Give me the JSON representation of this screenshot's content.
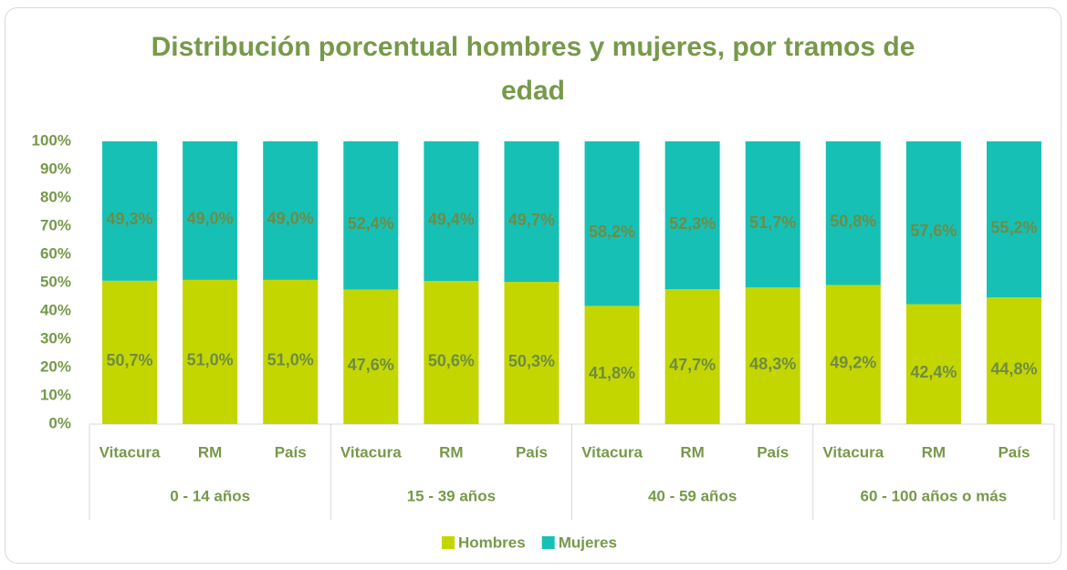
{
  "chart_data": {
    "type": "stacked_bar",
    "title": "Distribución porcentual hombres y mujeres, por tramos de edad",
    "groups": [
      {
        "name": "0 - 14 años",
        "categories": [
          "Vitacura",
          "RM",
          "País"
        ]
      },
      {
        "name": "15 - 39 años",
        "categories": [
          "Vitacura",
          "RM",
          "País"
        ]
      },
      {
        "name": "40 - 59 años",
        "categories": [
          "Vitacura",
          "RM",
          "País"
        ]
      },
      {
        "name": "60 - 100 años o más",
        "categories": [
          "Vitacura",
          "RM",
          "País"
        ]
      }
    ],
    "series": [
      {
        "name": "Hombres",
        "color": "#c4d600",
        "values": [
          50.7,
          51.0,
          51.0,
          47.6,
          50.6,
          50.3,
          41.8,
          47.7,
          48.3,
          49.2,
          42.4,
          44.8
        ],
        "value_labels": [
          "50,7%",
          "51,0%",
          "51,0%",
          "47,6%",
          "50,6%",
          "50,3%",
          "41,8%",
          "47,7%",
          "48,3%",
          "49,2%",
          "42,4%",
          "44,8%"
        ]
      },
      {
        "name": "Mujeres",
        "color": "#17c0b5",
        "values": [
          49.3,
          49.0,
          49.0,
          52.4,
          49.4,
          49.7,
          58.2,
          52.3,
          51.7,
          50.8,
          57.6,
          55.2
        ],
        "value_labels": [
          "49,3%",
          "49,0%",
          "49,0%",
          "52,4%",
          "49,4%",
          "49,7%",
          "58,2%",
          "52,3%",
          "51,7%",
          "50,8%",
          "57,6%",
          "55,2%"
        ]
      }
    ],
    "ylim": [
      0,
      100
    ],
    "yticks": [
      {
        "value": 0,
        "label": "0%"
      },
      {
        "value": 10,
        "label": "10%"
      },
      {
        "value": 20,
        "label": "20%"
      },
      {
        "value": 30,
        "label": "30%"
      },
      {
        "value": 40,
        "label": "40%"
      },
      {
        "value": 50,
        "label": "50%"
      },
      {
        "value": 60,
        "label": "60%"
      },
      {
        "value": 70,
        "label": "70%"
      },
      {
        "value": 80,
        "label": "80%"
      },
      {
        "value": 90,
        "label": "90%"
      },
      {
        "value": 100,
        "label": "100%"
      }
    ],
    "grid": false,
    "legend": "bottom"
  }
}
